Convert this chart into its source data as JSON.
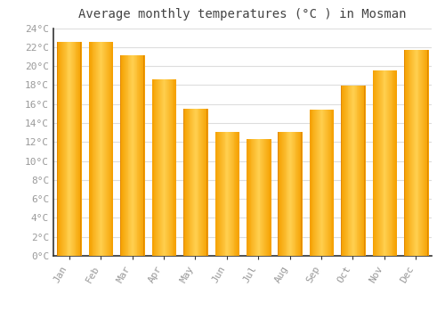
{
  "categories": [
    "Jan",
    "Feb",
    "Mar",
    "Apr",
    "May",
    "Jun",
    "Jul",
    "Aug",
    "Sep",
    "Oct",
    "Nov",
    "Dec"
  ],
  "values": [
    22.5,
    22.5,
    21.1,
    18.6,
    15.5,
    13.1,
    12.3,
    13.1,
    15.4,
    17.9,
    19.5,
    21.7
  ],
  "bar_color_face": "#FDB827",
  "bar_color_left": "#F5A000",
  "bar_color_right": "#F5A000",
  "title": "Average monthly temperatures (°C ) in Mosman",
  "ylim": [
    0,
    24
  ],
  "ytick_step": 2,
  "background_color": "#FFFFFF",
  "plot_bg_color": "#FFFFFF",
  "grid_color": "#DDDDDD",
  "title_fontsize": 10,
  "tick_fontsize": 8,
  "font_family": "monospace",
  "tick_color": "#999999",
  "spine_color": "#333333"
}
